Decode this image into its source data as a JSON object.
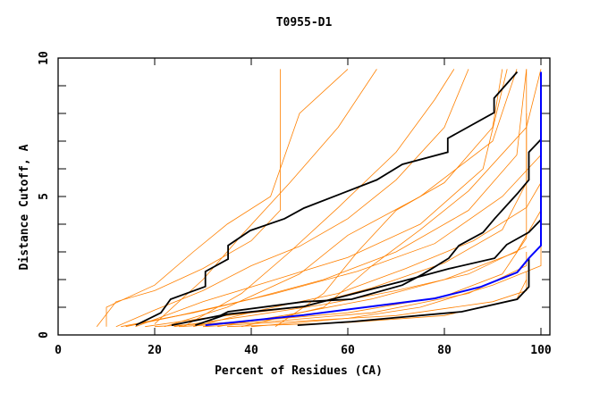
{
  "chart_data": {
    "type": "line",
    "title": "T0955-D1",
    "xlabel": "Percent of Residues (CA)",
    "ylabel": "Distance Cutoff, A",
    "xlim": [
      0,
      100
    ],
    "ylim": [
      0,
      10
    ],
    "x_ticks": [
      "0",
      "20",
      "40",
      "60",
      "80",
      "100"
    ],
    "y_ticks": [
      "0",
      "5",
      "10"
    ],
    "grid": false,
    "colors": {
      "other": "#ff8000",
      "highlight": "#000000",
      "best": "#0000ff"
    },
    "series_orange": [
      [
        [
          8,
          0.3
        ],
        [
          12,
          1.2
        ],
        [
          20,
          1.6
        ],
        [
          30,
          2.4
        ],
        [
          40,
          3.4
        ],
        [
          46,
          4.5
        ],
        [
          46,
          9.6
        ]
      ],
      [
        [
          10,
          0.3
        ],
        [
          10,
          1.0
        ],
        [
          20,
          1.8
        ],
        [
          28,
          3.0
        ],
        [
          35,
          4.0
        ],
        [
          44,
          5.0
        ],
        [
          50,
          8.0
        ],
        [
          60,
          9.6
        ]
      ],
      [
        [
          12,
          0.3
        ],
        [
          20,
          0.9
        ],
        [
          30,
          1.6
        ],
        [
          40,
          2.5
        ],
        [
          50,
          3.2
        ],
        [
          60,
          4.2
        ],
        [
          70,
          5.6
        ],
        [
          80,
          7.5
        ],
        [
          85,
          9.6
        ]
      ],
      [
        [
          14,
          0.3
        ],
        [
          25,
          0.7
        ],
        [
          40,
          1.3
        ],
        [
          55,
          2.0
        ],
        [
          70,
          3.0
        ],
        [
          85,
          4.5
        ],
        [
          95,
          6.5
        ],
        [
          97,
          9.6
        ]
      ],
      [
        [
          18,
          0.3
        ],
        [
          30,
          0.6
        ],
        [
          50,
          1.0
        ],
        [
          65,
          1.7
        ],
        [
          80,
          2.6
        ],
        [
          92,
          3.8
        ],
        [
          97,
          5.5
        ],
        [
          97,
          9.6
        ]
      ],
      [
        [
          20,
          0.3
        ],
        [
          40,
          0.5
        ],
        [
          60,
          0.8
        ],
        [
          80,
          1.4
        ],
        [
          92,
          2.2
        ],
        [
          97,
          3.5
        ],
        [
          97,
          8
        ]
      ],
      [
        [
          25,
          0.3
        ],
        [
          45,
          0.5
        ],
        [
          65,
          0.8
        ],
        [
          85,
          1.5
        ],
        [
          97,
          2.5
        ],
        [
          97,
          3
        ]
      ],
      [
        [
          30,
          0.3
        ],
        [
          50,
          0.5
        ],
        [
          70,
          0.7
        ],
        [
          90,
          1.2
        ],
        [
          97,
          1.6
        ],
        [
          97,
          2.3
        ]
      ],
      [
        [
          35,
          0.3
        ],
        [
          60,
          0.45
        ],
        [
          80,
          0.7
        ],
        [
          95,
          1.3
        ],
        [
          97,
          2
        ]
      ],
      [
        [
          22,
          0.3
        ],
        [
          35,
          1.0
        ],
        [
          50,
          2.2
        ],
        [
          60,
          3.6
        ],
        [
          75,
          5.0
        ],
        [
          90,
          7.0
        ],
        [
          95,
          9.6
        ]
      ],
      [
        [
          26,
          0.3
        ],
        [
          38,
          1.5
        ],
        [
          48,
          3.0
        ],
        [
          58,
          4.6
        ],
        [
          70,
          6.6
        ],
        [
          78,
          8.5
        ],
        [
          82,
          9.6
        ]
      ],
      [
        [
          40,
          0.3
        ],
        [
          60,
          0.6
        ],
        [
          75,
          1.0
        ],
        [
          90,
          1.8
        ],
        [
          100,
          2.5
        ],
        [
          100,
          3.2
        ]
      ],
      [
        [
          16,
          0.3
        ],
        [
          30,
          1.2
        ],
        [
          45,
          2.0
        ],
        [
          60,
          2.8
        ],
        [
          75,
          4.0
        ],
        [
          88,
          6.0
        ],
        [
          93,
          9.6
        ]
      ],
      [
        [
          45,
          0.3
        ],
        [
          55,
          1.5
        ],
        [
          62,
          3.0
        ],
        [
          70,
          4.5
        ],
        [
          80,
          5.5
        ],
        [
          90,
          7.5
        ],
        [
          92,
          9.6
        ]
      ],
      [
        [
          28,
          0.3
        ],
        [
          42,
          0.9
        ],
        [
          58,
          1.5
        ],
        [
          72,
          2.4
        ],
        [
          86,
          3.4
        ],
        [
          97,
          4.6
        ],
        [
          100,
          5.5
        ]
      ],
      [
        [
          33,
          0.3
        ],
        [
          50,
          0.8
        ],
        [
          65,
          1.3
        ],
        [
          80,
          2.0
        ],
        [
          95,
          3.0
        ],
        [
          100,
          4.5
        ]
      ],
      [
        [
          24,
          0.3
        ],
        [
          40,
          0.7
        ],
        [
          55,
          1.1
        ],
        [
          70,
          1.6
        ],
        [
          85,
          2.2
        ],
        [
          97,
          3.2
        ]
      ],
      [
        [
          13,
          0.3
        ],
        [
          28,
          0.8
        ],
        [
          45,
          1.5
        ],
        [
          62,
          2.3
        ],
        [
          78,
          3.3
        ],
        [
          92,
          5.0
        ],
        [
          100,
          6.5
        ]
      ],
      [
        [
          38,
          0.3
        ],
        [
          55,
          1.0
        ],
        [
          65,
          2.5
        ],
        [
          75,
          3.8
        ],
        [
          85,
          5.2
        ],
        [
          97,
          7.5
        ],
        [
          100,
          9.6
        ]
      ],
      [
        [
          20,
          0.4
        ],
        [
          30,
          2.0
        ],
        [
          38,
          3.6
        ],
        [
          48,
          5.5
        ],
        [
          58,
          7.5
        ],
        [
          66,
          9.6
        ]
      ]
    ],
    "series_black": [
      [
        [
          16.1,
          0.35
        ],
        [
          21.3,
          0.8
        ],
        [
          23.3,
          1.29
        ],
        [
          30.5,
          1.75
        ],
        [
          30.5,
          2.29
        ],
        [
          35.2,
          2.74
        ],
        [
          35.2,
          3.23
        ],
        [
          39.8,
          3.77
        ],
        [
          46.9,
          4.2
        ],
        [
          50.9,
          4.58
        ],
        [
          66,
          5.6
        ],
        [
          71.3,
          6.16
        ],
        [
          80.7,
          6.6
        ],
        [
          80.7,
          7.1
        ],
        [
          90.3,
          8.03
        ],
        [
          90.3,
          8.55
        ],
        [
          95.1,
          9.5
        ]
      ],
      [
        [
          49.6,
          0.35
        ],
        [
          60.8,
          0.48
        ],
        [
          83.6,
          0.84
        ],
        [
          95.1,
          1.29
        ],
        [
          97.5,
          1.74
        ],
        [
          97.5,
          2.77
        ]
      ],
      [
        [
          23.5,
          0.35
        ],
        [
          33.6,
          0.7
        ],
        [
          35.2,
          0.84
        ],
        [
          50.9,
          1.2
        ],
        [
          60.8,
          1.29
        ],
        [
          71.3,
          1.8
        ],
        [
          75.6,
          2.2
        ],
        [
          80.9,
          2.77
        ],
        [
          83,
          3.23
        ],
        [
          88,
          3.7
        ],
        [
          90.4,
          4.2
        ],
        [
          95.1,
          5.1
        ],
        [
          97.5,
          5.6
        ],
        [
          97.5,
          6.6
        ],
        [
          100,
          7.06
        ]
      ],
      [
        [
          28.4,
          0.35
        ],
        [
          35,
          0.75
        ],
        [
          50.9,
          1.03
        ],
        [
          71.3,
          1.94
        ],
        [
          80.9,
          2.39
        ],
        [
          90.4,
          2.77
        ],
        [
          92.9,
          3.26
        ],
        [
          97.5,
          3.71
        ],
        [
          100,
          4.16
        ]
      ]
    ],
    "series_blue": [
      [
        [
          30.5,
          0.35
        ],
        [
          50.9,
          0.72
        ],
        [
          78,
          1.32
        ],
        [
          87.6,
          1.74
        ],
        [
          95.1,
          2.26
        ],
        [
          97.5,
          2.77
        ],
        [
          100,
          3.23
        ],
        [
          100,
          9.5
        ]
      ]
    ]
  }
}
